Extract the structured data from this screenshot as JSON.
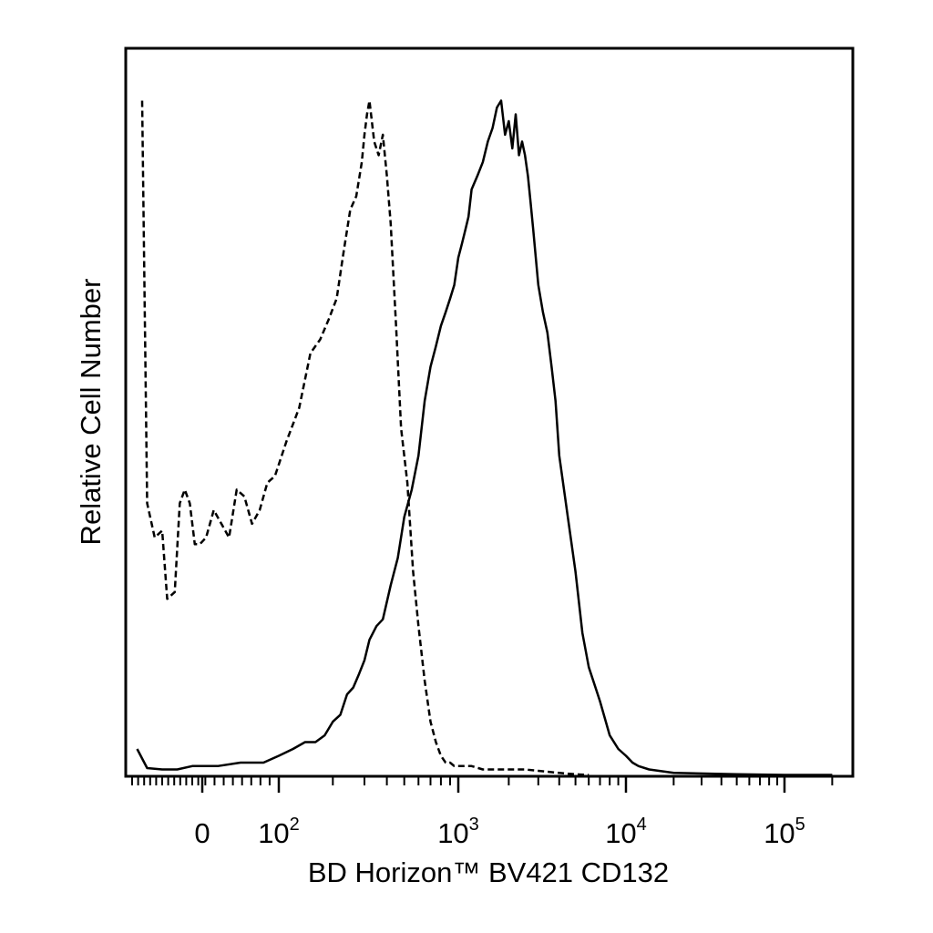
{
  "chart_data": {
    "type": "line",
    "chart_kind": "flow cytometry histogram overlay",
    "xlabel": "BD Horizon™ BV421 CD132",
    "ylabel": "Relative Cell Number",
    "x_scale": "biexponential (linear near 0, log above 10^2)",
    "x_ticks": [
      {
        "value": 0,
        "base": "0",
        "exp": ""
      },
      {
        "value": 100,
        "base": "10",
        "exp": "2"
      },
      {
        "value": 1000,
        "base": "10",
        "exp": "3"
      },
      {
        "value": 10000,
        "base": "10",
        "exp": "4"
      },
      {
        "value": 100000,
        "base": "10",
        "exp": "5"
      }
    ],
    "xlim": [
      -150,
      250000
    ],
    "ylim": [
      0,
      100
    ],
    "grid": false,
    "legend": "none",
    "series": [
      {
        "style": "dashed",
        "x": [
          -120,
          -110,
          -95,
          -80,
          -70,
          -55,
          -45,
          -35,
          -25,
          -15,
          -5,
          5,
          15,
          25,
          35,
          45,
          55,
          65,
          75,
          85,
          95,
          110,
          130,
          150,
          170,
          190,
          210,
          230,
          250,
          270,
          290,
          300,
          310,
          320,
          340,
          360,
          380,
          400,
          420,
          450,
          480,
          520,
          560,
          600,
          650,
          700,
          750,
          800,
          850,
          900,
          950,
          1000,
          1100,
          1200,
          1400,
          1600,
          2000,
          2500,
          3000,
          4000,
          5000,
          6000
        ],
        "y": [
          99,
          40,
          35,
          36,
          26,
          27,
          40,
          42,
          40,
          34,
          34,
          35,
          39,
          37,
          35,
          42,
          41,
          37,
          39,
          43,
          44,
          49,
          54,
          62,
          64,
          67,
          70,
          77,
          83,
          85,
          90,
          94,
          97,
          99,
          93,
          91,
          94,
          88,
          81,
          66,
          51,
          43,
          30,
          22,
          14,
          8,
          5,
          3,
          2,
          2,
          1.5,
          1.5,
          1.5,
          1.5,
          1,
          1,
          1,
          1,
          0.8,
          0.5,
          0.3,
          0.2
        ]
      },
      {
        "style": "solid",
        "x": [
          -130,
          -110,
          -80,
          -50,
          -20,
          0,
          20,
          50,
          80,
          100,
          120,
          140,
          160,
          180,
          200,
          220,
          240,
          260,
          280,
          300,
          320,
          350,
          380,
          420,
          460,
          500,
          550,
          600,
          650,
          700,
          750,
          800,
          850,
          900,
          950,
          1000,
          1050,
          1100,
          1150,
          1200,
          1300,
          1400,
          1500,
          1600,
          1700,
          1800,
          1900,
          2000,
          2100,
          2200,
          2300,
          2400,
          2500,
          2600,
          2700,
          2800,
          3000,
          3200,
          3400,
          3600,
          3800,
          4000,
          4500,
          5000,
          5500,
          6000,
          7000,
          8000,
          9000,
          10000,
          11000,
          12000,
          14000,
          20000,
          50000,
          100000,
          200000
        ],
        "y": [
          4,
          1.2,
          1,
          1,
          1.5,
          1.5,
          1.5,
          2,
          2,
          3,
          4,
          5,
          5,
          6,
          8,
          9,
          12,
          13,
          15,
          17,
          20,
          22,
          23,
          28,
          32,
          38,
          42,
          47,
          55,
          60,
          63,
          66,
          68,
          70,
          72,
          76,
          78,
          80,
          82,
          86,
          88,
          90,
          93,
          95,
          98,
          99,
          94,
          96,
          92,
          97,
          91,
          93,
          91,
          88,
          84,
          80,
          72,
          68,
          65,
          60,
          55,
          47,
          38,
          30,
          21,
          16,
          11,
          6,
          4,
          3,
          2,
          1.5,
          1,
          0.5,
          0.3,
          0.2,
          0.2
        ]
      }
    ]
  }
}
